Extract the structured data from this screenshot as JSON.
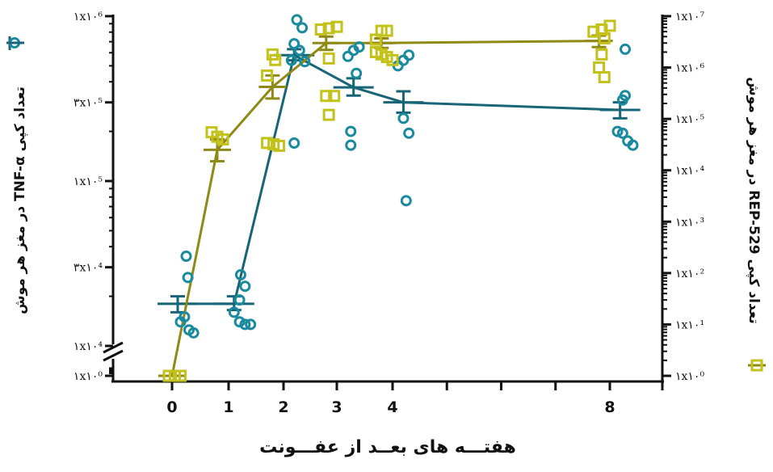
{
  "colors": {
    "tnf": "#1a8a9e",
    "tnf_line": "#176576",
    "rep": "#c2c21a",
    "rep_line": "#8f8a16",
    "axis": "#111111"
  },
  "chart_data": {
    "type": "scatter",
    "xlabel": "هفتـــه های بعــد از عفـــونت",
    "x_ticks": [
      {
        "value": 0,
        "label": "0"
      },
      {
        "value": 1,
        "label": "1"
      },
      {
        "value": 2,
        "label": "2"
      },
      {
        "value": 3,
        "label": "3"
      },
      {
        "value": 4,
        "label": "4"
      },
      {
        "value": 8,
        "label": "8"
      }
    ],
    "left_axis": {
      "title": "تعداد کپی TNF-α در مغز هر موش",
      "scale": "log",
      "break": true,
      "ticks": [
        {
          "value": 1000000,
          "label": "۱x۱۰⁶"
        },
        {
          "value": 300000,
          "label": "۳x۱۰⁵"
        },
        {
          "value": 100000,
          "label": "۱x۱۰⁵"
        },
        {
          "value": 30000,
          "label": "۳x۱۰⁴"
        },
        {
          "value": 10000,
          "label": "۱x۱۰⁴"
        },
        {
          "value": 1,
          "label": "۱x۱۰⁰"
        }
      ]
    },
    "right_axis": {
      "title": "تعداد کپی REP-529 در مغز هر موش",
      "scale": "log",
      "range": [
        1,
        10000000
      ],
      "ticks": [
        {
          "value": 10000000,
          "label": "۱x۱۰⁷"
        },
        {
          "value": 1000000,
          "label": "۱x۱۰⁶"
        },
        {
          "value": 100000,
          "label": "۱x۱۰⁵"
        },
        {
          "value": 10000,
          "label": "۱x۱۰⁴"
        },
        {
          "value": 1000,
          "label": "۱x۱۰³"
        },
        {
          "value": 100,
          "label": "۱x۱۰²"
        },
        {
          "value": 10,
          "label": "۱x۱۰¹"
        },
        {
          "value": 1,
          "label": "۱x۱۰⁰"
        }
      ]
    },
    "series": [
      {
        "name": "تعداد کپی TNF-α در مغز هر موش",
        "axis": "left",
        "marker": "circle",
        "mean": [
          {
            "x": 0.1,
            "y": 18000,
            "err": [
              16000,
              20000
            ]
          },
          {
            "x": 1.1,
            "y": 18000,
            "err": [
              16500,
              20000
            ]
          },
          {
            "x": 2.2,
            "y": 580000,
            "err": [
              540000,
              630000
            ]
          },
          {
            "x": 3.3,
            "y": 370000,
            "err": [
              330000,
              420000
            ]
          },
          {
            "x": 4.2,
            "y": 300000,
            "err": [
              260000,
              350000
            ]
          },
          {
            "x": 8.2,
            "y": 270000,
            "err": [
              240000,
              300000
            ]
          }
        ],
        "points": [
          {
            "x": 0.25,
            "y": 35000
          },
          {
            "x": 0.28,
            "y": 26000
          },
          {
            "x": 0.15,
            "y": 14000
          },
          {
            "x": 0.22,
            "y": 15000
          },
          {
            "x": 0.3,
            "y": 12500
          },
          {
            "x": 0.38,
            "y": 12000
          },
          {
            "x": 1.22,
            "y": 27000
          },
          {
            "x": 1.3,
            "y": 23000
          },
          {
            "x": 1.2,
            "y": 19000
          },
          {
            "x": 1.1,
            "y": 16000
          },
          {
            "x": 1.2,
            "y": 14000
          },
          {
            "x": 1.3,
            "y": 13500
          },
          {
            "x": 1.4,
            "y": 13500
          },
          {
            "x": 2.25,
            "y": 950000
          },
          {
            "x": 2.35,
            "y": 850000
          },
          {
            "x": 2.2,
            "y": 680000
          },
          {
            "x": 2.3,
            "y": 620000
          },
          {
            "x": 2.15,
            "y": 540000
          },
          {
            "x": 2.4,
            "y": 530000
          },
          {
            "x": 2.2,
            "y": 170000
          },
          {
            "x": 3.4,
            "y": 650000
          },
          {
            "x": 3.3,
            "y": 620000
          },
          {
            "x": 3.2,
            "y": 570000
          },
          {
            "x": 3.35,
            "y": 450000
          },
          {
            "x": 3.25,
            "y": 200000
          },
          {
            "x": 3.25,
            "y": 165000
          },
          {
            "x": 4.3,
            "y": 580000
          },
          {
            "x": 4.2,
            "y": 540000
          },
          {
            "x": 4.1,
            "y": 500000
          },
          {
            "x": 4.2,
            "y": 240000
          },
          {
            "x": 4.3,
            "y": 195000
          },
          {
            "x": 4.25,
            "y": 76000
          },
          {
            "x": 8.3,
            "y": 630000
          },
          {
            "x": 8.3,
            "y": 330000
          },
          {
            "x": 8.25,
            "y": 310000
          },
          {
            "x": 8.15,
            "y": 200000
          },
          {
            "x": 8.25,
            "y": 195000
          },
          {
            "x": 8.35,
            "y": 175000
          },
          {
            "x": 8.45,
            "y": 165000
          }
        ]
      },
      {
        "name": "تعداد کپی REP-529 در مغز هر موش",
        "axis": "right",
        "marker": "square",
        "mean": [
          {
            "x": 0.0,
            "y": 1,
            "err": [
              1,
              1
            ]
          },
          {
            "x": 0.8,
            "y": 25000,
            "err": [
              15000,
              40000
            ]
          },
          {
            "x": 1.8,
            "y": 420000,
            "err": [
              250000,
              700000
            ]
          },
          {
            "x": 2.8,
            "y": 3000000,
            "err": [
              2200000,
              4000000
            ]
          },
          {
            "x": 3.8,
            "y": 3000000,
            "err": [
              2400000,
              3700000
            ]
          },
          {
            "x": 7.8,
            "y": 3300000,
            "err": [
              2500000,
              4200000
            ]
          }
        ],
        "points": [
          {
            "x": -0.05,
            "y": 1
          },
          {
            "x": 0.05,
            "y": 1
          },
          {
            "x": 0.15,
            "y": 1
          },
          {
            "x": 0.7,
            "y": 55000
          },
          {
            "x": 0.8,
            "y": 45000
          },
          {
            "x": 0.9,
            "y": 40000
          },
          {
            "x": 1.8,
            "y": 1800000
          },
          {
            "x": 1.85,
            "y": 1400000
          },
          {
            "x": 1.7,
            "y": 700000
          },
          {
            "x": 1.7,
            "y": 34000
          },
          {
            "x": 1.82,
            "y": 32000
          },
          {
            "x": 1.92,
            "y": 30000
          },
          {
            "x": 2.7,
            "y": 5500000
          },
          {
            "x": 2.85,
            "y": 5800000
          },
          {
            "x": 3.0,
            "y": 6200000
          },
          {
            "x": 2.85,
            "y": 1500000
          },
          {
            "x": 2.8,
            "y": 280000
          },
          {
            "x": 2.95,
            "y": 280000
          },
          {
            "x": 2.85,
            "y": 120000
          },
          {
            "x": 3.8,
            "y": 5200000
          },
          {
            "x": 3.9,
            "y": 5200000
          },
          {
            "x": 3.7,
            "y": 3500000
          },
          {
            "x": 3.8,
            "y": 1800000
          },
          {
            "x": 3.9,
            "y": 1600000
          },
          {
            "x": 3.7,
            "y": 2000000
          },
          {
            "x": 4.0,
            "y": 1400000
          },
          {
            "x": 7.7,
            "y": 5000000
          },
          {
            "x": 7.85,
            "y": 5500000
          },
          {
            "x": 8.0,
            "y": 6500000
          },
          {
            "x": 7.9,
            "y": 3700000
          },
          {
            "x": 7.85,
            "y": 1800000
          },
          {
            "x": 7.8,
            "y": 1000000
          },
          {
            "x": 7.9,
            "y": 650000
          }
        ]
      }
    ]
  }
}
